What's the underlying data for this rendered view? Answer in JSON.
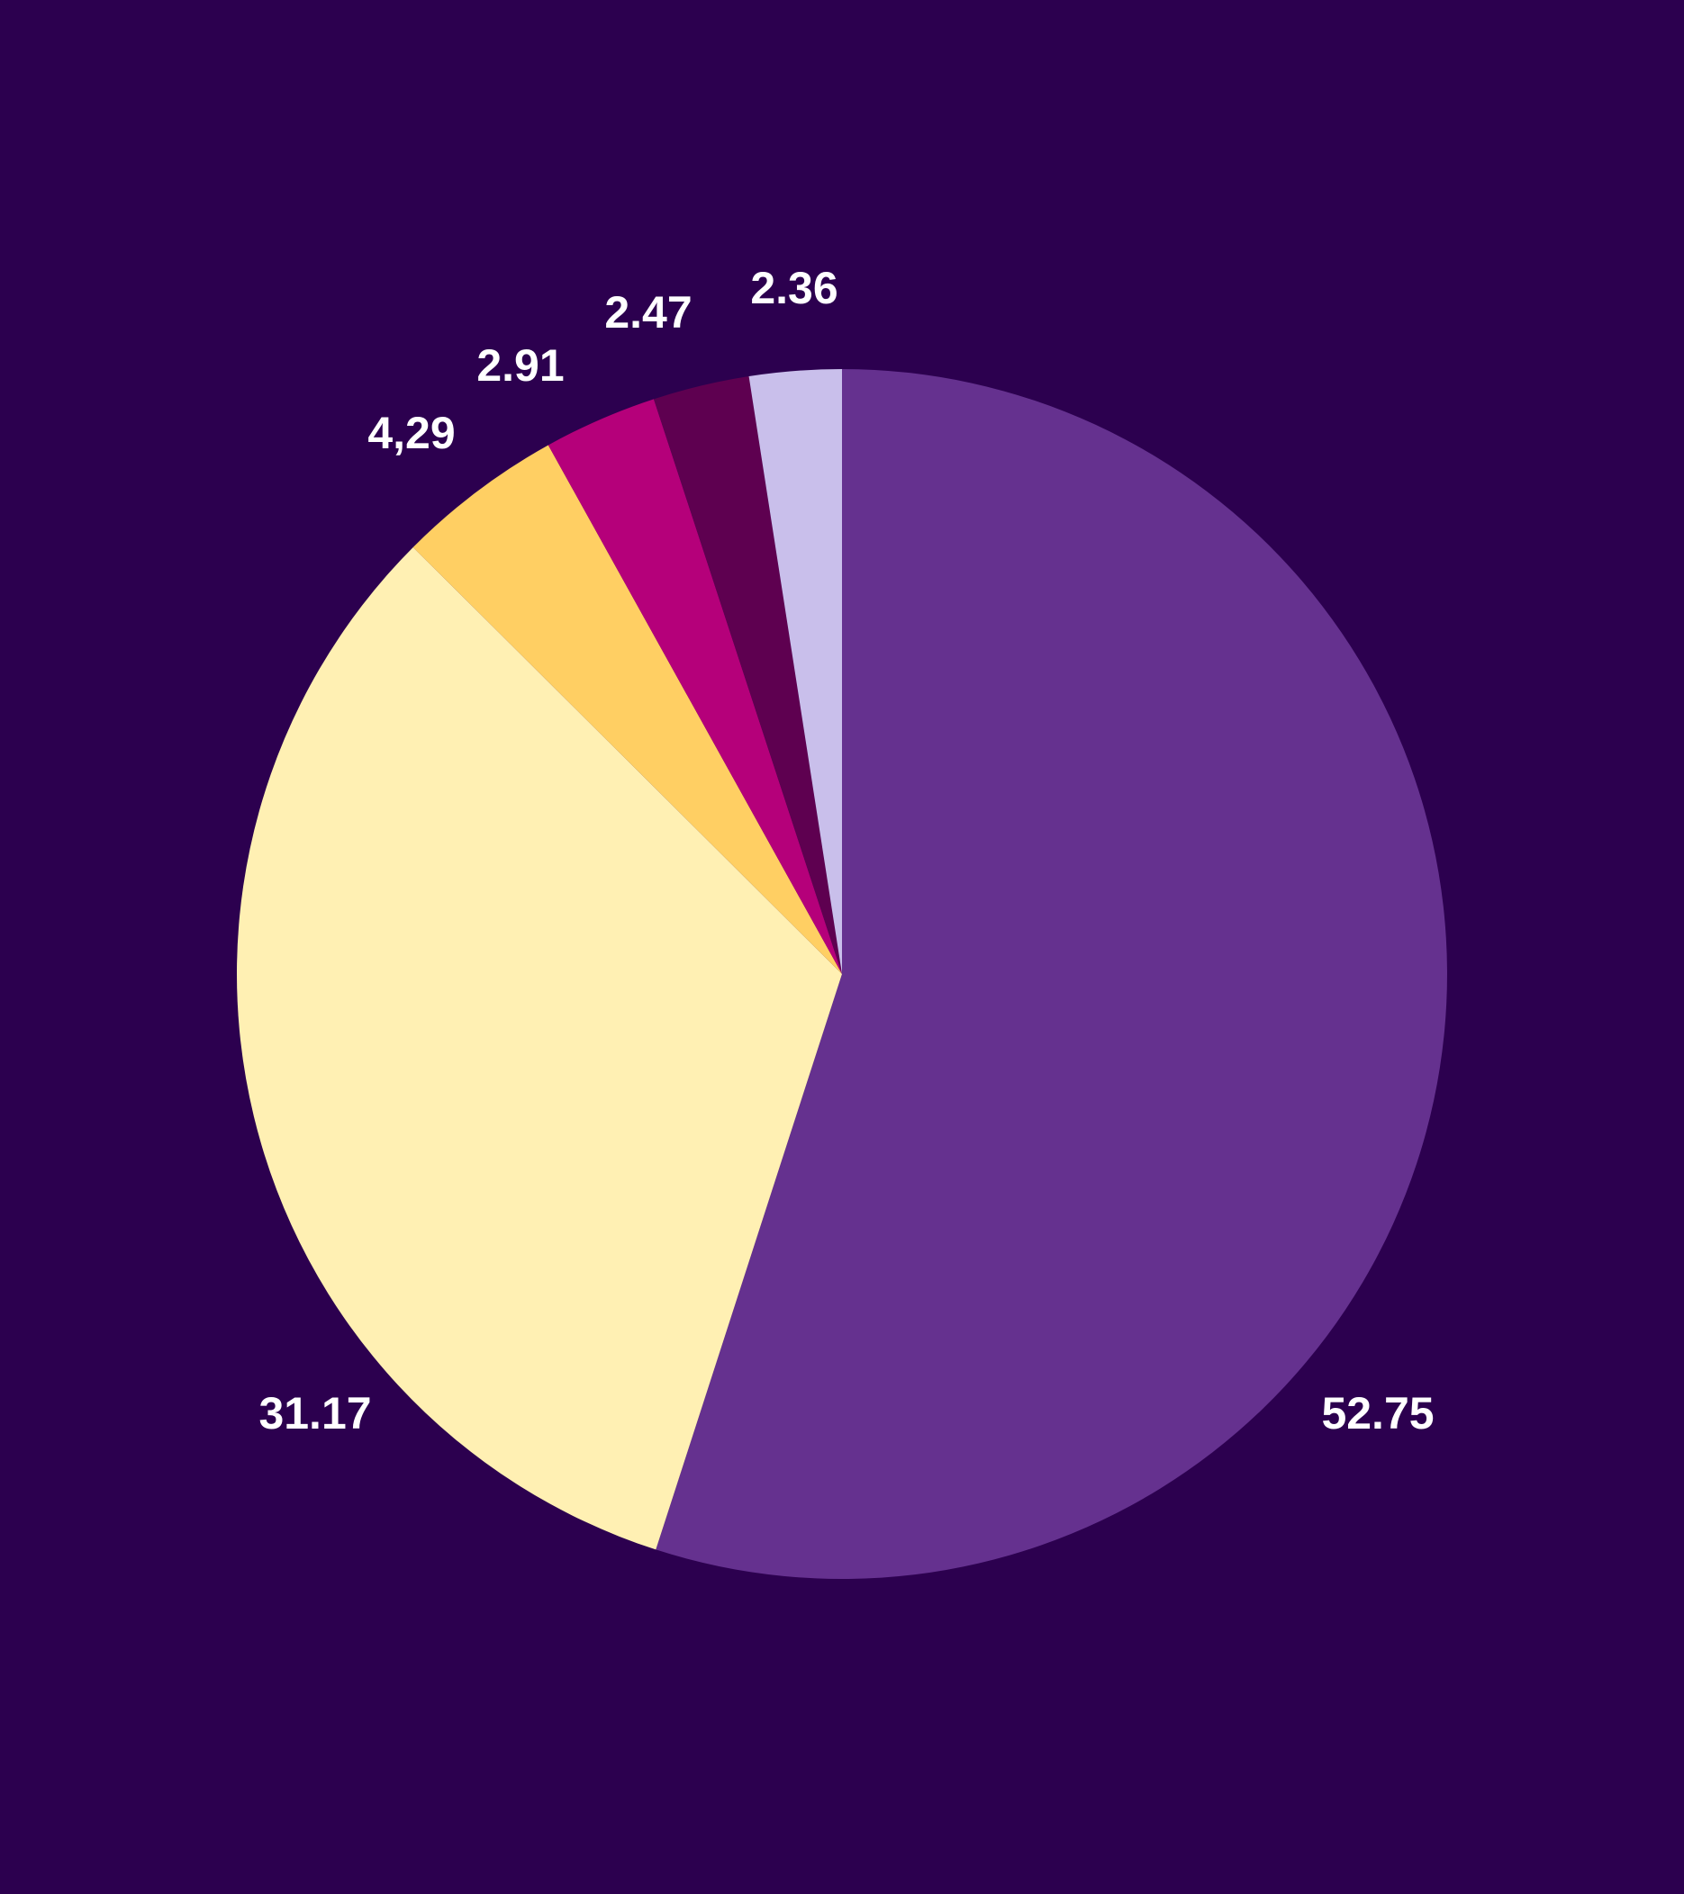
{
  "background_color": "#2c004f",
  "chart_data": {
    "type": "pie",
    "start_angle_deg": 0,
    "direction": "clockwise",
    "slices": [
      {
        "label": "52.75",
        "value": 52.75,
        "color": "#65318f"
      },
      {
        "label": "31.17",
        "value": 31.17,
        "color": "#fff0b3"
      },
      {
        "label": "4,29",
        "value": 4.29,
        "color": "#ffcf63"
      },
      {
        "label": "2.91",
        "value": 2.91,
        "color": "#b5007a"
      },
      {
        "label": "2.47",
        "value": 2.47,
        "color": "#5e0050"
      },
      {
        "label": "2.36",
        "value": 2.36,
        "color": "#c9bfeb"
      }
    ]
  }
}
